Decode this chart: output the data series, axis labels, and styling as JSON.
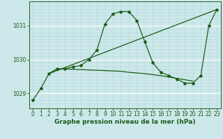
{
  "bg_color": "#cce8ea",
  "grid_color_v": "#b8d8da",
  "grid_color_h_minor": "#b8d8da",
  "grid_color_h_major": "#ffffff",
  "line_color": "#1a5c1a",
  "xlabel": "Graphe pression niveau de la mer (hPa)",
  "xlabel_fontsize": 6.5,
  "tick_fontsize": 5.5,
  "ytick_labels": [
    "1029",
    "1030",
    "1031"
  ],
  "ytick_vals": [
    1029,
    1030,
    1031
  ],
  "ylim": [
    1028.55,
    1031.72
  ],
  "xlim": [
    -0.5,
    23.5
  ],
  "xticks": [
    0,
    1,
    2,
    3,
    4,
    5,
    6,
    7,
    8,
    9,
    10,
    11,
    12,
    13,
    14,
    15,
    16,
    17,
    18,
    19,
    20,
    21,
    22,
    23
  ],
  "series1_x": [
    0,
    1,
    2,
    3,
    4,
    5,
    6,
    7,
    8,
    9,
    10,
    11,
    12,
    13,
    14,
    15,
    16,
    17,
    18,
    19,
    20,
    21,
    22,
    23
  ],
  "series1_y": [
    1028.8,
    1029.15,
    1029.58,
    1029.72,
    1029.72,
    1029.78,
    1029.82,
    1030.0,
    1030.28,
    1031.05,
    1031.35,
    1031.42,
    1031.42,
    1031.15,
    1030.52,
    1029.9,
    1029.62,
    1029.52,
    1029.42,
    1029.3,
    1029.3,
    1029.52,
    1031.0,
    1031.48
  ],
  "series2_x": [
    2,
    3,
    4,
    5,
    6,
    7,
    8,
    9,
    10,
    11,
    12,
    13,
    14,
    15,
    16,
    17,
    18,
    19,
    20
  ],
  "series2_y": [
    1029.58,
    1029.72,
    1029.72,
    1029.71,
    1029.7,
    1029.69,
    1029.68,
    1029.67,
    1029.66,
    1029.65,
    1029.62,
    1029.6,
    1029.58,
    1029.55,
    1029.52,
    1029.48,
    1029.44,
    1029.4,
    1029.36
  ],
  "series3_x": [
    2,
    23
  ],
  "series3_y": [
    1029.58,
    1031.48
  ]
}
